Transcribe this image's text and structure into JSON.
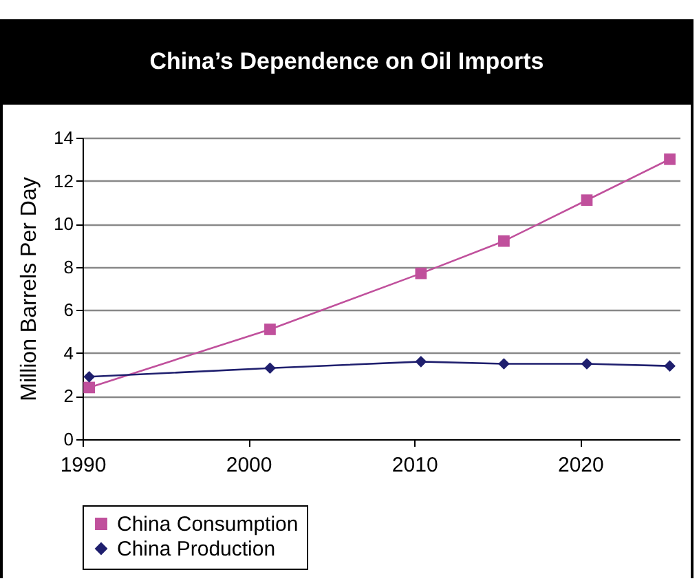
{
  "chart_data": {
    "type": "line",
    "title": "China’s Dependence on Oil Imports",
    "ylabel": "Million Barrels Per Day",
    "x": [
      1990.4,
      2001.3,
      2010.4,
      2015.4,
      2020.4,
      2025.4
    ],
    "series": [
      {
        "name": "China Consumption",
        "color": "#c0509c",
        "marker": "square",
        "values": [
          2.4,
          5.1,
          7.7,
          9.2,
          11.1,
          13.0
        ]
      },
      {
        "name": "China Production",
        "color": "#1f1f6e",
        "marker": "diamond",
        "values": [
          2.9,
          3.3,
          3.6,
          3.5,
          3.5,
          3.4
        ]
      }
    ],
    "xlim": [
      1990,
      2026
    ],
    "xticks": [
      1990,
      2000,
      2010,
      2020
    ],
    "ylim": [
      0,
      14
    ],
    "yticks": [
      0,
      2,
      4,
      6,
      8,
      10,
      12,
      14
    ],
    "grid": "y",
    "legend": "bottom"
  }
}
